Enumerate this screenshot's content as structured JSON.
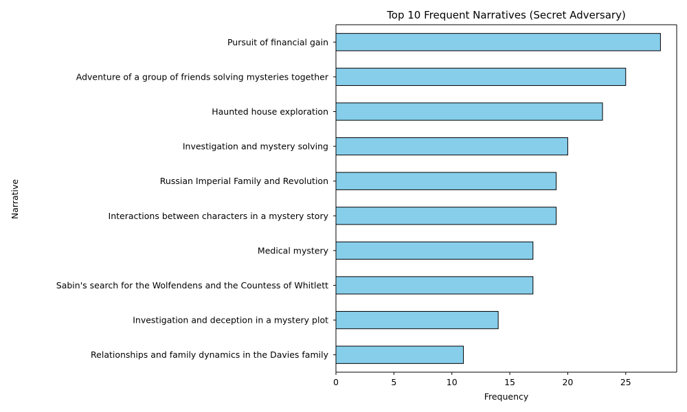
{
  "chart_data": {
    "type": "bar",
    "orientation": "horizontal",
    "title": "Top 10 Frequent Narratives (Secret Adversary)",
    "xlabel": "Frequency",
    "ylabel": "Narrative",
    "xlim": [
      0,
      29.4
    ],
    "xticks": [
      0,
      5,
      10,
      15,
      20,
      25
    ],
    "grid": false,
    "categories": [
      "Pursuit of financial gain",
      "Adventure of a group of friends solving mysteries together",
      "Haunted house exploration",
      "Investigation and mystery solving",
      "Russian Imperial Family and Revolution",
      "Interactions between characters in a mystery story",
      "Medical mystery",
      "Sabin's search for the Wolfendens and the Countess of Whitlett",
      "Investigation and deception in a mystery plot",
      "Relationships and family dynamics in the Davies family"
    ],
    "values": [
      28,
      25,
      23,
      20,
      19,
      19,
      17,
      17,
      14,
      11
    ],
    "bar_color": "#87ceeb",
    "edge_color": "#000000"
  }
}
